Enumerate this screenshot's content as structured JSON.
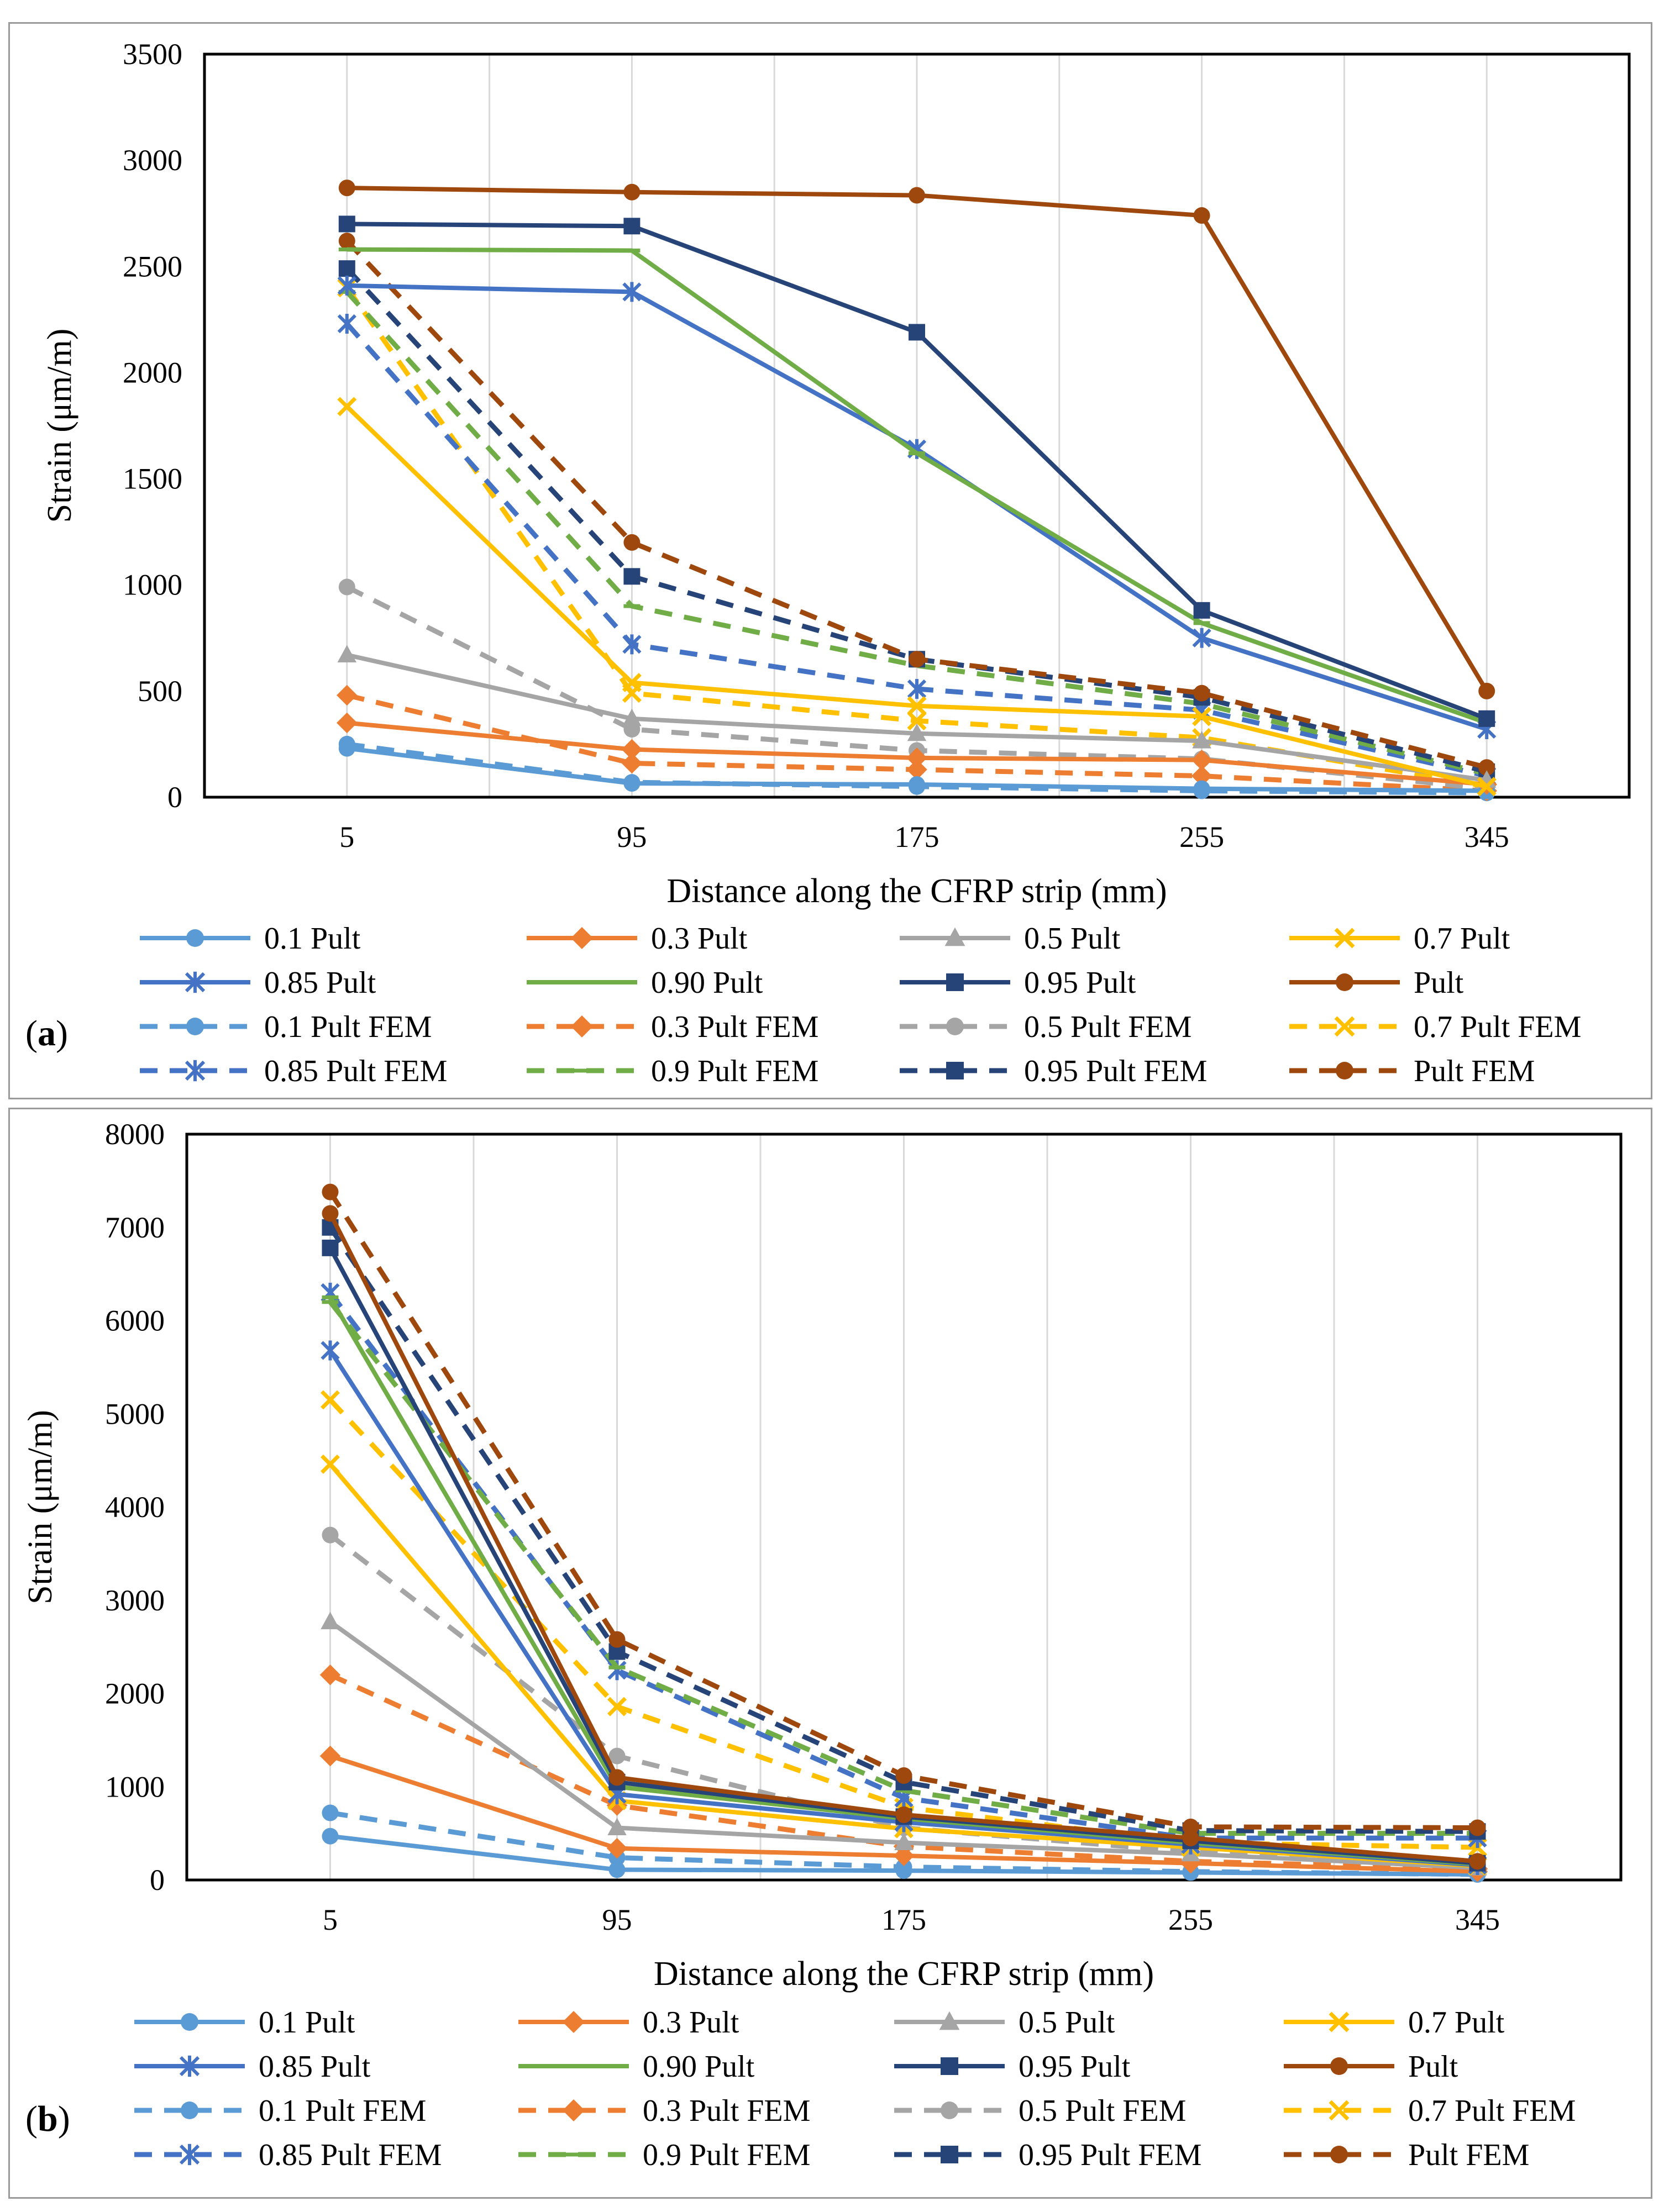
{
  "colors": {
    "0.1": "#5b9bd5",
    "0.3": "#ed7d31",
    "0.5": "#a5a5a5",
    "0.7": "#ffc000",
    "0.85": "#4472c4",
    "0.90": "#70ad47",
    "0.95": "#264478",
    "1.0": "#9e480e",
    "grid": "#d9d9d9",
    "axis": "#000000"
  },
  "chart_data": [
    {
      "panel": "(a)",
      "panel_letter": "a",
      "type": "line",
      "xlabel": "Distance along the CFRP strip (mm)",
      "ylabel": "Strain (μm/m)",
      "categories": [
        "5",
        "95",
        "175",
        "255",
        "345"
      ],
      "ylim": [
        0,
        3500
      ],
      "yticks": [
        0,
        500,
        1000,
        1500,
        2000,
        2500,
        3000,
        3500
      ],
      "grid": "vertical",
      "legend_position": "bottom",
      "series": [
        {
          "name": "0.1 Pult",
          "color_key": "0.1",
          "marker": "circle",
          "dashed": false,
          "values": [
            230,
            65,
            60,
            40,
            30
          ]
        },
        {
          "name": "0.3 Pult",
          "color_key": "0.3",
          "marker": "diamond",
          "dashed": false,
          "values": [
            350,
            225,
            185,
            175,
            60
          ]
        },
        {
          "name": "0.5 Pult",
          "color_key": "0.5",
          "marker": "triangle",
          "dashed": false,
          "values": [
            670,
            370,
            300,
            265,
            80
          ]
        },
        {
          "name": "0.7 Pult",
          "color_key": "0.7",
          "marker": "x",
          "dashed": false,
          "values": [
            1840,
            540,
            430,
            380,
            50
          ]
        },
        {
          "name": "0.85 Pult",
          "color_key": "0.85",
          "marker": "star",
          "dashed": false,
          "values": [
            2410,
            2380,
            1640,
            750,
            320
          ]
        },
        {
          "name": "0.90 Pult",
          "color_key": "0.90",
          "marker": "dash",
          "dashed": false,
          "values": [
            2580,
            2575,
            1620,
            820,
            350
          ]
        },
        {
          "name": "0.95 Pult",
          "color_key": "0.95",
          "marker": "square",
          "dashed": false,
          "values": [
            2700,
            2690,
            2190,
            880,
            370
          ]
        },
        {
          "name": "Pult",
          "color_key": "1.0",
          "marker": "circle",
          "dashed": false,
          "values": [
            2870,
            2850,
            2835,
            2740,
            500
          ]
        },
        {
          "name": "0.1 Pult FEM",
          "color_key": "0.1",
          "marker": "circle",
          "dashed": true,
          "values": [
            250,
            70,
            50,
            30,
            20
          ]
        },
        {
          "name": "0.3 Pult FEM",
          "color_key": "0.3",
          "marker": "diamond",
          "dashed": true,
          "values": [
            480,
            160,
            130,
            100,
            30
          ]
        },
        {
          "name": "0.5 Pult FEM",
          "color_key": "0.5",
          "marker": "circle",
          "dashed": true,
          "values": [
            990,
            320,
            220,
            180,
            40
          ]
        },
        {
          "name": "0.7 Pult FEM",
          "color_key": "0.7",
          "marker": "x",
          "dashed": true,
          "values": [
            2400,
            490,
            360,
            280,
            50
          ]
        },
        {
          "name": "0.85 Pult FEM",
          "color_key": "0.85",
          "marker": "star",
          "dashed": true,
          "values": [
            2230,
            720,
            510,
            410,
            100
          ]
        },
        {
          "name": "0.9 Pult FEM",
          "color_key": "0.90",
          "marker": "dash",
          "dashed": true,
          "values": [
            2380,
            900,
            620,
            440,
            110
          ]
        },
        {
          "name": "0.95 Pult FEM",
          "color_key": "0.95",
          "marker": "square",
          "dashed": true,
          "values": [
            2490,
            1040,
            650,
            470,
            120
          ]
        },
        {
          "name": "Pult FEM",
          "color_key": "1.0",
          "marker": "circle",
          "dashed": true,
          "values": [
            2620,
            1200,
            650,
            490,
            140
          ]
        }
      ]
    },
    {
      "panel": "(b)",
      "panel_letter": "b",
      "type": "line",
      "xlabel": "Distance along the CFRP strip (mm)",
      "ylabel": "Strain (μm/m)",
      "categories": [
        "5",
        "95",
        "175",
        "255",
        "345"
      ],
      "ylim": [
        0,
        8000
      ],
      "yticks": [
        0,
        1000,
        2000,
        3000,
        4000,
        5000,
        6000,
        7000,
        8000
      ],
      "grid": "vertical",
      "legend_position": "bottom",
      "series": [
        {
          "name": "0.1 Pult",
          "color_key": "0.1",
          "marker": "circle",
          "dashed": false,
          "values": [
            470,
            110,
            100,
            80,
            60
          ]
        },
        {
          "name": "0.3 Pult",
          "color_key": "0.3",
          "marker": "diamond",
          "dashed": false,
          "values": [
            1330,
            340,
            260,
            180,
            90
          ]
        },
        {
          "name": "0.5 Pult",
          "color_key": "0.5",
          "marker": "triangle",
          "dashed": false,
          "values": [
            2770,
            560,
            400,
            280,
            130
          ]
        },
        {
          "name": "0.7 Pult",
          "color_key": "0.7",
          "marker": "x",
          "dashed": false,
          "values": [
            4460,
            850,
            550,
            350,
            150
          ]
        },
        {
          "name": "0.85 Pult",
          "color_key": "0.85",
          "marker": "star",
          "dashed": false,
          "values": [
            5680,
            920,
            620,
            380,
            160
          ]
        },
        {
          "name": "0.90 Pult",
          "color_key": "0.90",
          "marker": "dash",
          "dashed": false,
          "values": [
            6250,
            1000,
            660,
            400,
            170
          ]
        },
        {
          "name": "0.95 Pult",
          "color_key": "0.95",
          "marker": "square",
          "dashed": false,
          "values": [
            6780,
            1050,
            680,
            420,
            180
          ]
        },
        {
          "name": "Pult",
          "color_key": "1.0",
          "marker": "circle",
          "dashed": false,
          "values": [
            7150,
            1100,
            700,
            450,
            200
          ]
        },
        {
          "name": "0.1 Pult FEM",
          "color_key": "0.1",
          "marker": "circle",
          "dashed": true,
          "values": [
            720,
            240,
            140,
            90,
            60
          ]
        },
        {
          "name": "0.3 Pult FEM",
          "color_key": "0.3",
          "marker": "diamond",
          "dashed": true,
          "values": [
            2200,
            800,
            360,
            200,
            120
          ]
        },
        {
          "name": "0.5 Pult FEM",
          "color_key": "0.5",
          "marker": "circle",
          "dashed": true,
          "values": [
            3700,
            1330,
            560,
            300,
            170
          ]
        },
        {
          "name": "0.7 Pult FEM",
          "color_key": "0.7",
          "marker": "x",
          "dashed": true,
          "values": [
            5150,
            1860,
            780,
            400,
            350
          ]
        },
        {
          "name": "0.85 Pult FEM",
          "color_key": "0.85",
          "marker": "star",
          "dashed": true,
          "values": [
            6300,
            2250,
            880,
            450,
            450
          ]
        },
        {
          "name": "0.9 Pult FEM",
          "color_key": "0.90",
          "marker": "dash",
          "dashed": true,
          "values": [
            6200,
            2280,
            960,
            500,
            500
          ]
        },
        {
          "name": "0.95 Pult FEM",
          "color_key": "0.95",
          "marker": "square",
          "dashed": true,
          "values": [
            7000,
            2450,
            1050,
            530,
            520
          ]
        },
        {
          "name": "Pult FEM",
          "color_key": "1.0",
          "marker": "circle",
          "dashed": true,
          "values": [
            7380,
            2580,
            1120,
            570,
            560
          ]
        }
      ]
    }
  ]
}
